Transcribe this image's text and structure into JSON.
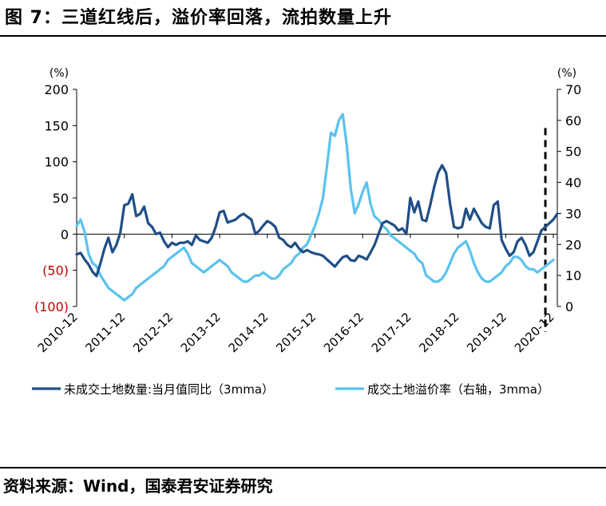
{
  "title": "图 7：三道红线后，溢价率回落，流拍数量上升",
  "source": "资料来源：Wind，国泰君安证券研究",
  "colors": {
    "dark_series": "#1F4E87",
    "light_series": "#5BC2EE",
    "negative_label": "#C00000",
    "axis": "#000000",
    "dashed_line": "#000000"
  },
  "chart_data": {
    "type": "line",
    "left_axis": {
      "unit": "(%)",
      "ylim": [
        -100,
        200
      ],
      "ticks": [
        -100,
        -50,
        0,
        50,
        100,
        150,
        200
      ],
      "tick_labels": [
        "(100)",
        "(50)",
        "0",
        "50",
        "100",
        "150",
        "200"
      ]
    },
    "right_axis": {
      "unit": "(%)",
      "ylim": [
        0,
        70
      ],
      "ticks": [
        0,
        10,
        20,
        30,
        40,
        50,
        60,
        70
      ],
      "tick_labels": [
        "0",
        "10",
        "20",
        "30",
        "40",
        "50",
        "60",
        "70"
      ]
    },
    "x_tick_labels": [
      "2010-12",
      "2011-12",
      "2012-12",
      "2013-12",
      "2014-12",
      "2015-12",
      "2016-12",
      "2017-12",
      "2018-12",
      "2019-12",
      "2020-12"
    ],
    "x_tick_positions": [
      0,
      12,
      24,
      36,
      48,
      60,
      72,
      84,
      96,
      108,
      120
    ],
    "x_start": "2010-12",
    "grid": false,
    "legend_position": "bottom",
    "vline_dashed_at": 118,
    "series": [
      {
        "name": "未成交土地数量:当月值同比（3mma）",
        "axis": "left",
        "values": [
          -28,
          -26,
          -35,
          -42,
          -52,
          -58,
          -40,
          -20,
          -5,
          -25,
          -15,
          2,
          40,
          42,
          55,
          25,
          28,
          38,
          15,
          10,
          0,
          2,
          -10,
          -18,
          -12,
          -15,
          -12,
          -12,
          -10,
          -15,
          -2,
          -8,
          -10,
          -12,
          -5,
          10,
          30,
          32,
          16,
          18,
          20,
          25,
          28,
          24,
          20,
          0,
          5,
          12,
          18,
          15,
          10,
          -5,
          -8,
          -15,
          -18,
          -12,
          -20,
          -25,
          -22,
          -25,
          -27,
          -28,
          -30,
          -35,
          -40,
          -45,
          -38,
          -32,
          -30,
          -36,
          -37,
          -30,
          -32,
          -35,
          -25,
          -15,
          0,
          15,
          18,
          15,
          12,
          5,
          8,
          0,
          50,
          30,
          45,
          20,
          18,
          40,
          65,
          85,
          95,
          85,
          42,
          10,
          8,
          10,
          35,
          20,
          35,
          25,
          15,
          10,
          8,
          40,
          45,
          -8,
          -20,
          -30,
          -25,
          -10,
          -5,
          -15,
          -30,
          -25,
          -10,
          5,
          10,
          15,
          20,
          28
        ],
        "color": "#1F4E87"
      },
      {
        "name": "成交土地溢价率（右轴，3mma）",
        "axis": "right",
        "values": [
          26,
          28,
          24,
          17,
          14,
          13,
          10,
          8,
          6,
          5,
          4,
          3,
          2,
          3,
          4,
          6,
          7,
          8,
          9,
          10,
          11,
          12,
          13,
          15,
          16,
          17,
          18,
          19,
          17,
          14,
          13,
          12,
          11,
          12,
          13,
          14,
          15,
          14,
          13,
          11,
          10,
          9,
          8,
          8,
          9,
          10,
          10,
          11,
          10,
          9,
          9,
          10,
          12,
          13,
          14,
          16,
          17,
          19,
          20,
          23,
          26,
          30,
          35,
          45,
          56,
          55,
          60,
          62,
          52,
          38,
          30,
          33,
          37,
          40,
          33,
          29,
          28,
          26,
          25,
          23,
          22,
          21,
          20,
          19,
          18,
          17,
          15,
          14,
          10,
          9,
          8,
          8,
          9,
          11,
          14,
          17,
          19,
          20,
          21,
          18,
          14,
          11,
          9,
          8,
          8,
          9,
          10,
          11,
          13,
          14,
          16,
          16,
          15,
          13,
          12,
          12,
          11,
          12,
          13,
          14,
          15
        ]
      }
    ]
  }
}
